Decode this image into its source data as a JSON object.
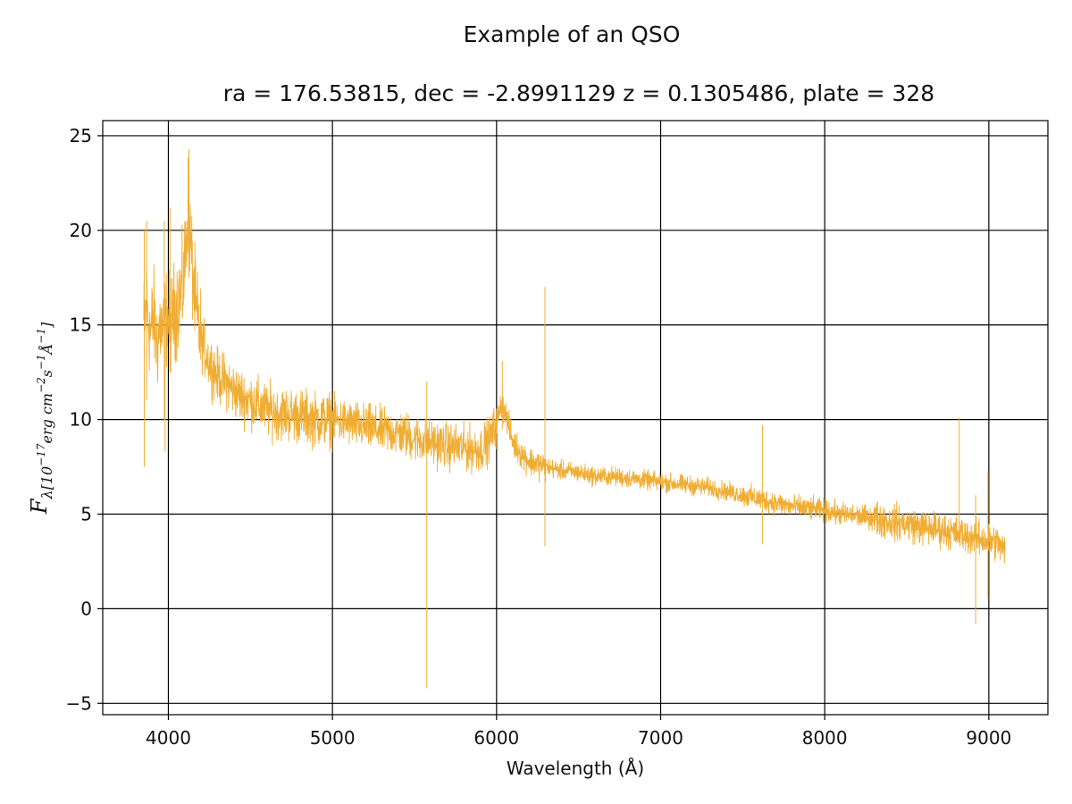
{
  "chart_data": {
    "type": "line",
    "title": "Example of an QSO",
    "subtitle": "ra = 176.53815, dec = -2.8991129 z = 0.1305486, plate = 328",
    "xlabel": "Wavelength (Å)",
    "ylabel": {
      "main": "F",
      "sub": "λ[10",
      "exp1": "−17",
      "mid1": "erg cm",
      "exp2": "−2",
      "mid2": "s",
      "exp3": "−1",
      "mid3": "Å",
      "exp4": "−1",
      "end": "]"
    },
    "xlim": [
      3600,
      9360
    ],
    "ylim": [
      -5.6,
      25.8
    ],
    "xticks": [
      4000,
      5000,
      6000,
      7000,
      8000,
      9000
    ],
    "yticks": [
      -5,
      0,
      5,
      10,
      15,
      20,
      25
    ],
    "xtick_labels": [
      "4000",
      "5000",
      "6000",
      "7000",
      "8000",
      "9000"
    ],
    "ytick_labels": [
      "−5",
      "0",
      "5",
      "10",
      "15",
      "20",
      "25"
    ],
    "grid": true,
    "line_color": "#f0ad33",
    "series": [
      {
        "x": [
          3850,
          3870,
          3890,
          3910,
          3930,
          3950,
          3970,
          3990,
          4010,
          4030,
          4050,
          4070,
          4090,
          4110,
          4120,
          4130,
          4150,
          4170,
          4200,
          4250,
          4300,
          4350,
          4400,
          4450,
          4500,
          4600,
          4700,
          4800,
          4900,
          5000,
          5100,
          5200,
          5300,
          5400,
          5500,
          5600,
          5700,
          5800,
          5900,
          5960,
          6000,
          6030,
          6050,
          6070,
          6100,
          6150,
          6200,
          6300,
          6400,
          6500,
          6600,
          6700,
          6800,
          6900,
          7000,
          7100,
          7200,
          7300,
          7400,
          7500,
          7600,
          7700,
          7800,
          7900,
          8000,
          8100,
          8200,
          8300,
          8400,
          8500,
          8600,
          8700,
          8800,
          8900,
          9000,
          9050,
          9100
        ],
        "y": [
          15.0,
          16.0,
          14.5,
          15.5,
          14.0,
          15.0,
          14.5,
          15.5,
          15.0,
          15.5,
          16.0,
          16.5,
          17.0,
          19.5,
          21.5,
          20.0,
          17.5,
          15.5,
          14.2,
          13.0,
          12.3,
          12.0,
          11.5,
          11.2,
          11.0,
          10.5,
          10.3,
          10.2,
          10.0,
          10.0,
          9.8,
          9.6,
          9.4,
          9.3,
          9.0,
          8.8,
          8.6,
          8.5,
          8.4,
          9.0,
          9.8,
          10.8,
          10.5,
          9.8,
          8.8,
          8.2,
          7.8,
          7.5,
          7.3,
          7.2,
          7.0,
          7.0,
          6.9,
          6.8,
          6.7,
          6.6,
          6.5,
          6.4,
          6.2,
          6.0,
          5.8,
          5.6,
          5.4,
          5.3,
          5.2,
          5.0,
          4.9,
          4.8,
          4.6,
          4.5,
          4.3,
          4.2,
          4.0,
          3.8,
          3.6,
          3.5,
          3.0
        ]
      }
    ],
    "features": [
      {
        "x": 3853,
        "lo": 7.5,
        "hi": 20.0
      },
      {
        "x": 3868,
        "lo": 11.0,
        "hi": 20.5
      },
      {
        "x": 3975,
        "lo": 10.0,
        "hi": 20.5
      },
      {
        "x": 3980,
        "lo": 8.3,
        "hi": 14.0
      },
      {
        "x": 4010,
        "lo": 12.5,
        "hi": 21.2
      },
      {
        "x": 4125,
        "lo": 17.5,
        "hi": 24.3
      },
      {
        "x": 5575,
        "lo": -4.2,
        "hi": 12.0
      },
      {
        "x": 6035,
        "lo": 9.5,
        "hi": 13.1
      },
      {
        "x": 6295,
        "lo": 3.3,
        "hi": 17.0
      },
      {
        "x": 7620,
        "lo": 3.4,
        "hi": 9.7
      },
      {
        "x": 8820,
        "lo": 3.5,
        "hi": 10.1
      },
      {
        "x": 8920,
        "lo": -0.8,
        "hi": 6.0
      },
      {
        "x": 8995,
        "lo": 0.5,
        "hi": 7.3
      }
    ]
  }
}
